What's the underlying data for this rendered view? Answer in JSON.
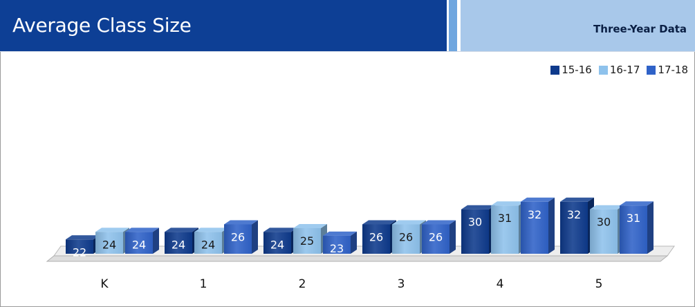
{
  "header": {
    "title": "Average Class Size",
    "subtitle": "Three-Year Data"
  },
  "colors": {
    "header_dark": "#0d3f95",
    "header_light": "#a8c8ea",
    "series": [
      "#0e3a8c",
      "#8ec2ec",
      "#2f62c8"
    ]
  },
  "chart_data": {
    "type": "bar",
    "title": "Average Class Size",
    "subtitle": "Three-Year Data",
    "xlabel": "",
    "ylabel": "",
    "grid": false,
    "legend_position": "top-right",
    "categories": [
      "K",
      "1",
      "2",
      "3",
      "4",
      "5"
    ],
    "series": [
      {
        "name": "15-16",
        "values": [
          22,
          24,
          24,
          26,
          30,
          32
        ]
      },
      {
        "name": "16-17",
        "values": [
          24,
          24,
          25,
          26,
          31,
          30
        ]
      },
      {
        "name": "17-18",
        "values": [
          24,
          26,
          23,
          26,
          32,
          31
        ]
      }
    ]
  }
}
